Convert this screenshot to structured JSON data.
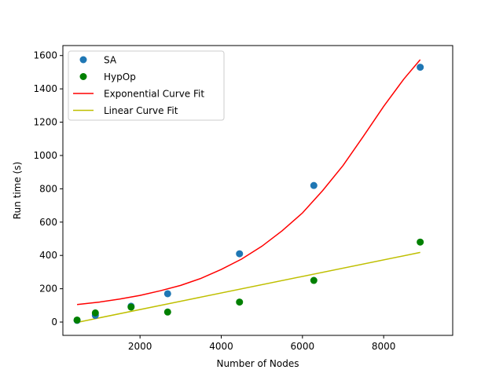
{
  "chart_data": {
    "type": "scatter",
    "xlabel": "Number of Nodes",
    "ylabel": "Run time (s)",
    "xlim": [
      100,
      9700
    ],
    "ylim": [
      -80,
      1660
    ],
    "xticks": [
      2000,
      4000,
      6000,
      8000
    ],
    "yticks": [
      0,
      200,
      400,
      600,
      800,
      1000,
      1200,
      1400,
      1600
    ],
    "grid": false,
    "legend_position": "top-left",
    "series": [
      {
        "name": "SA",
        "kind": "scatter",
        "color": "#1f77b4",
        "points": [
          [
            450,
            10
          ],
          [
            900,
            40
          ],
          [
            1780,
            95
          ],
          [
            2680,
            170
          ],
          [
            4450,
            410
          ],
          [
            6280,
            820
          ],
          [
            8900,
            1530
          ]
        ]
      },
      {
        "name": "HypOp",
        "kind": "scatter",
        "color": "#008000",
        "points": [
          [
            450,
            12
          ],
          [
            900,
            55
          ],
          [
            1780,
            90
          ],
          [
            2680,
            60
          ],
          [
            4450,
            120
          ],
          [
            6280,
            250
          ],
          [
            8900,
            480
          ]
        ]
      },
      {
        "name": "Exponential Curve Fit",
        "kind": "line",
        "color": "#ff0000",
        "points": [
          [
            450,
            105
          ],
          [
            1000,
            120
          ],
          [
            1500,
            138
          ],
          [
            2000,
            160
          ],
          [
            2500,
            188
          ],
          [
            3000,
            220
          ],
          [
            3500,
            262
          ],
          [
            4000,
            316
          ],
          [
            4500,
            378
          ],
          [
            5000,
            455
          ],
          [
            5500,
            548
          ],
          [
            6000,
            655
          ],
          [
            6500,
            790
          ],
          [
            7000,
            940
          ],
          [
            7500,
            1115
          ],
          [
            8000,
            1295
          ],
          [
            8500,
            1460
          ],
          [
            8900,
            1575
          ]
        ]
      },
      {
        "name": "Linear Curve Fit",
        "kind": "line",
        "color": "#bfbf00",
        "points": [
          [
            450,
            -2
          ],
          [
            8900,
            418
          ]
        ]
      }
    ]
  }
}
